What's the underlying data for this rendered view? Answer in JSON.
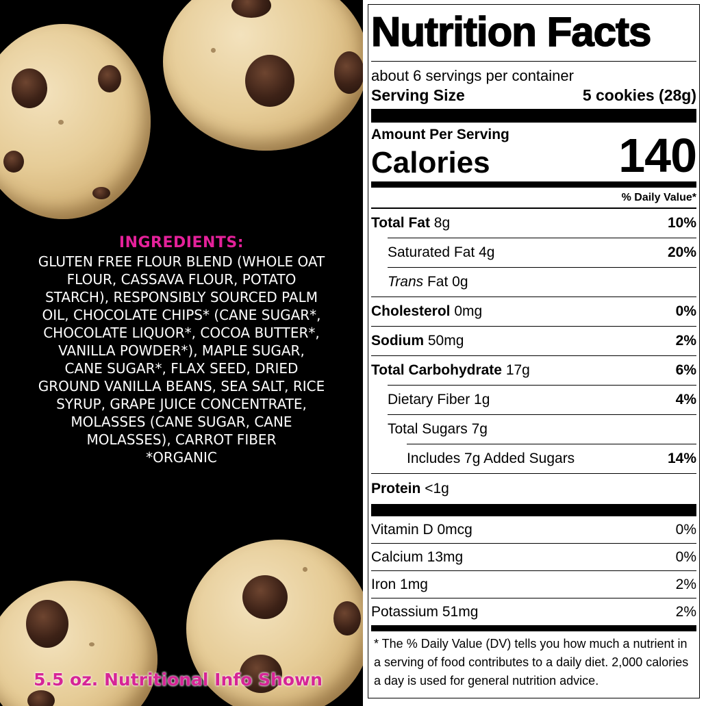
{
  "ingredients": {
    "title": "INGREDIENTS:",
    "body": "GLUTEN FREE FLOUR BLEND (WHOLE OAT FLOUR, CASSAVA FLOUR, POTATO STARCH), RESPONSIBLY SOURCED PALM OIL, CHOCOLATE CHIPS* (CANE SUGAR*, CHOCOLATE LIQUOR*, COCOA BUTTER*, VANILLA POWDER*), MAPLE SUGAR, CANE SUGAR*, FLAX SEED, DRIED GROUND VANILLA BEANS, SEA SALT, RICE SYRUP, GRAPE JUICE CONCENTRATE, MOLASSES (CANE SUGAR, CANE MOLASSES), CARROT FIBER",
    "organic_note": "*ORGANIC"
  },
  "footer_note": "5.5 oz. Nutritional Info Shown",
  "label": {
    "title": "Nutrition Facts",
    "servings_per_container": "about 6 servings per container",
    "serving_size_label": "Serving Size",
    "serving_size_value": "5 cookies (28g)",
    "amount_per_serving": "Amount Per Serving",
    "calories_label": "Calories",
    "calories_value": "140",
    "dv_header": "% Daily Value*",
    "nutrients": {
      "total_fat": {
        "name": "Total Fat",
        "amount": "8g",
        "dv": "10%"
      },
      "saturated_fat": {
        "name": "Saturated Fat",
        "amount": "4g",
        "dv": "20%"
      },
      "trans_fat": {
        "name": "Trans",
        "name_suffix": "Fat",
        "amount": "0g"
      },
      "cholesterol": {
        "name": "Cholesterol",
        "amount": "0mg",
        "dv": "0%"
      },
      "sodium": {
        "name": "Sodium",
        "amount": "50mg",
        "dv": "2%"
      },
      "total_carb": {
        "name": "Total Carbohydrate",
        "amount": "17g",
        "dv": "6%"
      },
      "dietary_fiber": {
        "name": "Dietary Fiber",
        "amount": "1g",
        "dv": "4%"
      },
      "total_sugars": {
        "name": "Total Sugars",
        "amount": "7g"
      },
      "added_sugars": {
        "text": "Includes 7g Added Sugars",
        "dv": "14%"
      },
      "protein": {
        "name": "Protein",
        "amount": "<1g"
      }
    },
    "vitamins": [
      {
        "text": "Vitamin D 0mcg",
        "dv": "0%"
      },
      {
        "text": "Calcium 13mg",
        "dv": "0%"
      },
      {
        "text": "Iron 1mg",
        "dv": "2%"
      },
      {
        "text": "Potassium 51mg",
        "dv": "2%"
      }
    ],
    "footnote": "* The % Daily Value (DV) tells you how much a nutrient in a serving of food contributes to a daily diet. 2,000 calories a day is used for general nutrition advice."
  }
}
